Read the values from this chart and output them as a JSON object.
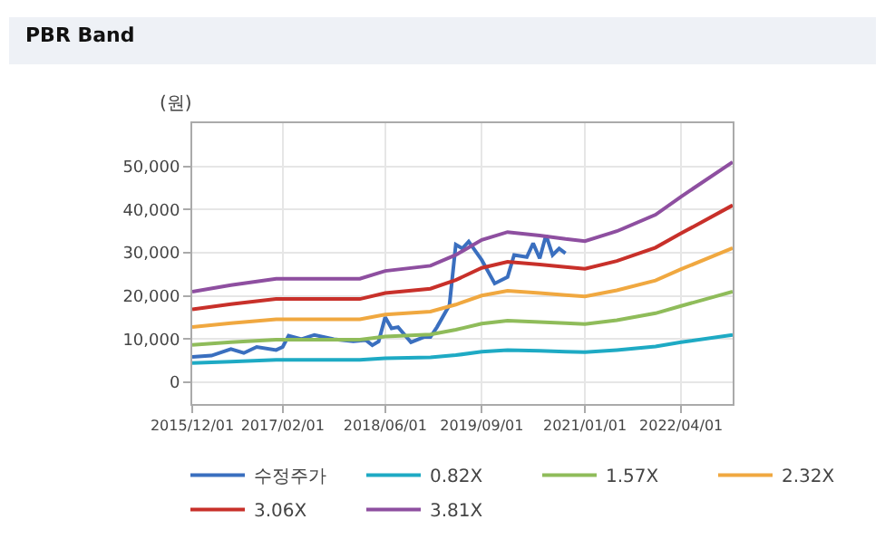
{
  "chart_data": {
    "type": "line",
    "title": "PBR Band",
    "ylabel": "(원)",
    "xlim": [
      "2015-12-01",
      "2022-12-01"
    ],
    "xticks": [
      {
        "value": "2015-12-01",
        "label": "2015/12/01"
      },
      {
        "value": "2017-02-01",
        "label": "2017/02/01"
      },
      {
        "value": "2018-06-01",
        "label": "2018/06/01"
      },
      {
        "value": "2019-09-01",
        "label": "2019/09/01"
      },
      {
        "value": "2021-01-01",
        "label": "2021/01/01"
      },
      {
        "value": "2022-04-01",
        "label": "2022/04/01"
      }
    ],
    "ylim": [
      -5000,
      60000
    ],
    "yticks": [
      {
        "value": 0,
        "label": "0"
      },
      {
        "value": 10000,
        "label": "10,000"
      },
      {
        "value": 20000,
        "label": "20,000"
      },
      {
        "value": 30000,
        "label": "30,000"
      },
      {
        "value": 40000,
        "label": "40,000"
      },
      {
        "value": 50000,
        "label": "50,000"
      }
    ],
    "grid": true,
    "legend": "bottom",
    "marker": "none",
    "line_style": "solid",
    "series": [
      {
        "name": "수정주가",
        "color": "#3a6fbf",
        "x": [
          "2015-12",
          "2016-03",
          "2016-06",
          "2016-08",
          "2016-10",
          "2017-01",
          "2017-02",
          "2017-03",
          "2017-05",
          "2017-07",
          "2017-10",
          "2018-01",
          "2018-03",
          "2018-04",
          "2018-05",
          "2018-06",
          "2018-07",
          "2018-08",
          "2018-10",
          "2018-12",
          "2019-01",
          "2019-02",
          "2019-04",
          "2019-05",
          "2019-06",
          "2019-07",
          "2019-09",
          "2019-11",
          "2020-01",
          "2020-02",
          "2020-04",
          "2020-05",
          "2020-06",
          "2020-07",
          "2020-08",
          "2020-09",
          "2020-10"
        ],
        "values": [
          5900,
          6200,
          7700,
          6800,
          8200,
          7500,
          8200,
          10800,
          10000,
          11000,
          10000,
          9500,
          9800,
          8600,
          9500,
          15100,
          12500,
          12800,
          9300,
          10500,
          10500,
          12800,
          17900,
          31900,
          31000,
          32600,
          28300,
          22900,
          24400,
          29500,
          29000,
          32200,
          28700,
          34100,
          29500,
          31000,
          29900
        ]
      },
      {
        "name": "0.82X",
        "color": "#1eaac4",
        "x": [
          "2015-12",
          "2016-06",
          "2017-01",
          "2018-02",
          "2018-06",
          "2019-01",
          "2019-05",
          "2019-09",
          "2020-01",
          "2020-06",
          "2020-10",
          "2021-01",
          "2021-06",
          "2021-12",
          "2022-04",
          "2022-12"
        ],
        "values": [
          4500,
          4800,
          5200,
          5200,
          5600,
          5800,
          6300,
          7100,
          7500,
          7300,
          7100,
          7000,
          7500,
          8300,
          9300,
          11000
        ]
      },
      {
        "name": "1.57X",
        "color": "#8fbc5a",
        "x": [
          "2015-12",
          "2016-06",
          "2017-01",
          "2018-02",
          "2018-06",
          "2019-01",
          "2019-05",
          "2019-09",
          "2020-01",
          "2020-06",
          "2020-10",
          "2021-01",
          "2021-06",
          "2021-12",
          "2022-04",
          "2022-12"
        ],
        "values": [
          8700,
          9300,
          9900,
          9900,
          10600,
          11100,
          12200,
          13600,
          14300,
          14000,
          13700,
          13500,
          14400,
          16000,
          17700,
          21000
        ]
      },
      {
        "name": "2.32X",
        "color": "#f0a840",
        "x": [
          "2015-12",
          "2016-06",
          "2017-01",
          "2018-02",
          "2018-06",
          "2019-01",
          "2019-05",
          "2019-09",
          "2020-01",
          "2020-06",
          "2020-10",
          "2021-01",
          "2021-06",
          "2021-12",
          "2022-04",
          "2022-12"
        ],
        "values": [
          12800,
          13700,
          14600,
          14600,
          15700,
          16400,
          18000,
          20100,
          21200,
          20700,
          20200,
          19900,
          21300,
          23600,
          26200,
          31100
        ]
      },
      {
        "name": "3.06X",
        "color": "#c8302a",
        "x": [
          "2015-12",
          "2016-06",
          "2017-01",
          "2018-02",
          "2018-06",
          "2019-01",
          "2019-05",
          "2019-09",
          "2020-01",
          "2020-06",
          "2020-10",
          "2021-01",
          "2021-06",
          "2021-12",
          "2022-04",
          "2022-12"
        ],
        "values": [
          16900,
          18100,
          19300,
          19300,
          20700,
          21700,
          23700,
          26500,
          27900,
          27300,
          26700,
          26300,
          28100,
          31200,
          34500,
          41000
        ]
      },
      {
        "name": "3.81X",
        "color": "#8e4fa0",
        "x": [
          "2015-12",
          "2016-06",
          "2017-01",
          "2018-02",
          "2018-06",
          "2019-01",
          "2019-05",
          "2019-09",
          "2020-01",
          "2020-06",
          "2020-10",
          "2021-01",
          "2021-06",
          "2021-12",
          "2022-04",
          "2022-12"
        ],
        "values": [
          21000,
          22500,
          24000,
          24000,
          25800,
          27000,
          29500,
          33000,
          34800,
          34000,
          33200,
          32700,
          35000,
          38800,
          43000,
          51000
        ]
      }
    ]
  }
}
